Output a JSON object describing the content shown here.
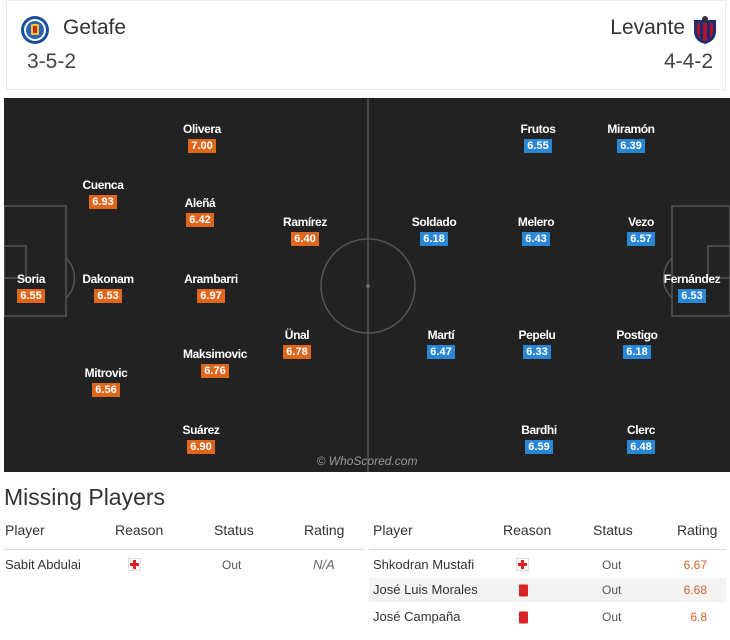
{
  "home": {
    "name": "Getafe",
    "formation": "3-5-2",
    "crest_icon": "getafe-crest-icon",
    "players": [
      {
        "name": "Soria",
        "rating": "6.55"
      },
      {
        "name": "Cuenca",
        "rating": "6.93"
      },
      {
        "name": "Dakonam",
        "rating": "6.53"
      },
      {
        "name": "Mitrovic",
        "rating": "6.56"
      },
      {
        "name": "Olivera",
        "rating": "7.00"
      },
      {
        "name": "Aleñá",
        "rating": "6.42"
      },
      {
        "name": "Arambarri",
        "rating": "6.97"
      },
      {
        "name": "Maksimovic",
        "rating": "6.76"
      },
      {
        "name": "Suárez",
        "rating": "6.90"
      },
      {
        "name": "Ramírez",
        "rating": "6.40"
      },
      {
        "name": "Ünal",
        "rating": "6.78"
      }
    ]
  },
  "away": {
    "name": "Levante",
    "formation": "4-4-2",
    "crest_icon": "levante-crest-icon",
    "players": [
      {
        "name": "Frutos",
        "rating": "6.55"
      },
      {
        "name": "Miramón",
        "rating": "6.39"
      },
      {
        "name": "Soldado",
        "rating": "6.18"
      },
      {
        "name": "Melero",
        "rating": "6.43"
      },
      {
        "name": "Vezo",
        "rating": "6.57"
      },
      {
        "name": "Fernández",
        "rating": "6.53"
      },
      {
        "name": "Martí",
        "rating": "6.47"
      },
      {
        "name": "Pepelu",
        "rating": "6.33"
      },
      {
        "name": "Postigo",
        "rating": "6.18"
      },
      {
        "name": "Bardhi",
        "rating": "6.59"
      },
      {
        "name": "Clerc",
        "rating": "6.48"
      }
    ]
  },
  "watermark": "© WhoScored.com",
  "missing": {
    "title": "Missing Players",
    "headers": {
      "player": "Player",
      "reason": "Reason",
      "status": "Status",
      "rating": "Rating"
    },
    "home_rows": [
      {
        "player": "Sabit Abdulai",
        "reason_icon": "injury-cross-icon",
        "status": "Out",
        "rating": "N/A"
      }
    ],
    "away_rows": [
      {
        "player": "Shkodran Mustafi",
        "reason_icon": "injury-cross-icon",
        "status": "Out",
        "rating": "6.67"
      },
      {
        "player": "José Luis Morales",
        "reason_icon": "red-card-icon",
        "status": "Out",
        "rating": "6.68"
      },
      {
        "player": "José Campaña",
        "reason_icon": "red-card-icon",
        "status": "Out",
        "rating": "6.8"
      }
    ]
  },
  "colors": {
    "home_rating": "#e0661c",
    "away_rating": "#2a87d6",
    "pitch": "#222222",
    "missing_rating": "#d0622a"
  }
}
